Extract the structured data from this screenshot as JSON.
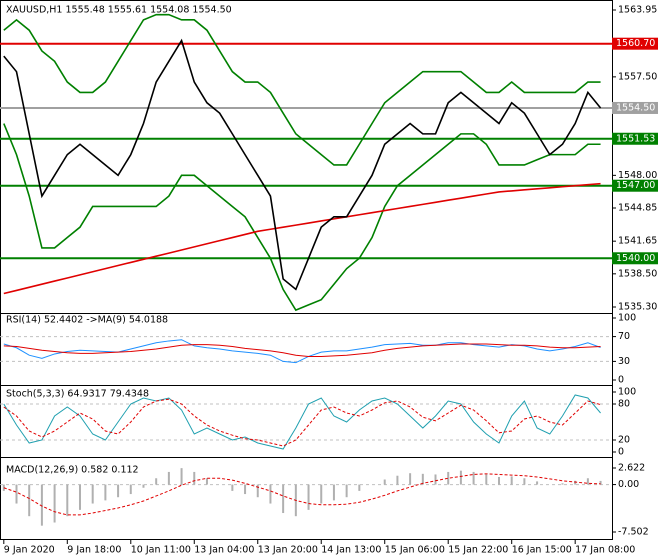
{
  "chart_data": [
    {
      "type": "line",
      "title": "XAUUSD,H1  1555.48 1555.61 1554.08 1554.50",
      "xlim": [
        -0.3,
        47.9
      ],
      "xticks": [
        {
          "value": 0,
          "label": "9 Jan 2020"
        },
        {
          "value": 5,
          "label": "9 Jan 18:00"
        },
        {
          "value": 10,
          "label": "10 Jan 11:00"
        },
        {
          "value": 15,
          "label": "13 Jan 04:00"
        },
        {
          "value": 20,
          "label": "13 Jan 20:00"
        },
        {
          "value": 25,
          "label": "14 Jan 13:00"
        },
        {
          "value": 30,
          "label": "15 Jan 06:00"
        },
        {
          "value": 35,
          "label": "15 Jan 22:00"
        },
        {
          "value": 40,
          "label": "16 Jan 15:00"
        },
        {
          "value": 45,
          "label": "17 Jan 08:00"
        }
      ],
      "ylim": [
        1535.3,
        1563.95
      ],
      "yticks": [
        {
          "value": 1563.95,
          "label": "1563.95"
        },
        {
          "value": 1557.5,
          "label": "1557.50"
        },
        {
          "value": 1548,
          "label": "1548.00"
        },
        {
          "value": 1544.85,
          "label": "1544.85"
        },
        {
          "value": 1541.65,
          "label": "1541.65"
        },
        {
          "value": 1538.5,
          "label": "1538.50"
        },
        {
          "value": 1535.3,
          "label": "1535.30"
        }
      ],
      "levels": [
        {
          "value": 1560.7,
          "label": "1560.70",
          "color": "#e00000"
        },
        {
          "value": 1554.5,
          "label": "1554.50",
          "color": "#a0a0a0"
        },
        {
          "value": 1551.53,
          "label": "1551.53",
          "color": "#008000"
        },
        {
          "value": 1547,
          "label": "1547.00",
          "color": "#008000"
        },
        {
          "value": 1540,
          "label": "1540.00",
          "color": "#008000"
        }
      ],
      "series": [
        {
          "color": "#008000",
          "style": "line",
          "values": [
            1562,
            1563,
            1562,
            1560,
            1559,
            1557,
            1556,
            1556,
            1557,
            1559,
            1561,
            1563,
            1563.5,
            1563.5,
            1563,
            1563,
            1562,
            1560,
            1558,
            1557,
            1557,
            1556,
            1554,
            1552,
            1551,
            1550,
            1549,
            1549,
            1551,
            1553,
            1555,
            1556,
            1557,
            1558,
            1558,
            1558,
            1558,
            1557,
            1556,
            1556,
            1557,
            1556,
            1556,
            1556,
            1556,
            1556,
            1557,
            1557
          ]
        },
        {
          "color": "#008000",
          "style": "line",
          "values": [
            1553,
            1550,
            1546,
            1541,
            1541,
            1542,
            1543,
            1545,
            1545,
            1545,
            1545,
            1545,
            1545,
            1546,
            1548,
            1548,
            1547,
            1546,
            1545,
            1544,
            1542,
            1540,
            1537,
            1535,
            1535.5,
            1536,
            1537.5,
            1539,
            1540,
            1542,
            1545,
            1547,
            1548,
            1549,
            1550,
            1551,
            1552,
            1552,
            1551,
            1549,
            1549,
            1549,
            1549.5,
            1550,
            1550,
            1550,
            1551,
            1551
          ]
        },
        {
          "color": "#e00000",
          "style": "line",
          "values": [
            1536.6,
            1536.9,
            1537.2,
            1537.5,
            1537.8,
            1538.1,
            1538.4,
            1538.7,
            1539,
            1539.3,
            1539.6,
            1539.9,
            1540.2,
            1540.5,
            1540.8,
            1541.1,
            1541.4,
            1541.7,
            1542,
            1542.3,
            1542.6,
            1542.8,
            1543,
            1543.2,
            1543.4,
            1543.6,
            1543.8,
            1544,
            1544.2,
            1544.4,
            1544.6,
            1544.8,
            1545,
            1545.2,
            1545.4,
            1545.6,
            1545.8,
            1546,
            1546.2,
            1546.4,
            1546.5,
            1546.6,
            1546.7,
            1546.8,
            1546.9,
            1547,
            1547.1,
            1547.2
          ]
        },
        {
          "color": "#000000",
          "style": "line",
          "values": [
            1559.5,
            1558,
            1552,
            1546,
            1548,
            1550,
            1551,
            1550,
            1549,
            1548,
            1550,
            1553,
            1557,
            1559,
            1561,
            1557,
            1555,
            1554,
            1552,
            1550,
            1548,
            1546,
            1538,
            1537,
            1540,
            1543,
            1544,
            1544,
            1546,
            1548,
            1551,
            1552,
            1553,
            1552,
            1552,
            1555,
            1556,
            1555,
            1554,
            1553,
            1555,
            1554,
            1552,
            1550,
            1551,
            1553,
            1556,
            1554.5
          ]
        }
      ]
    },
    {
      "type": "line",
      "title": "RSI(14) 52.4402  ->MA(9) 54.0188",
      "ylim": [
        0,
        100
      ],
      "yticks": [
        100,
        70,
        30,
        0
      ],
      "series": [
        {
          "color": "#1e90ff",
          "style": "line",
          "values": [
            58,
            52,
            40,
            35,
            42,
            46,
            48,
            47,
            46,
            45,
            50,
            55,
            60,
            63,
            65,
            55,
            52,
            50,
            47,
            45,
            43,
            40,
            30,
            28,
            38,
            45,
            47,
            47,
            50,
            53,
            57,
            58,
            59,
            56,
            56,
            60,
            60,
            57,
            55,
            53,
            57,
            55,
            50,
            47,
            50,
            54,
            60,
            52.4
          ]
        },
        {
          "color": "#e00000",
          "style": "line",
          "values": [
            55,
            54,
            51,
            48,
            46,
            44,
            43,
            43,
            44,
            45,
            46,
            48,
            50,
            53,
            56,
            57,
            57,
            56,
            54,
            51,
            49,
            47,
            44,
            40,
            38,
            38,
            39,
            40,
            42,
            44,
            48,
            51,
            53,
            55,
            56,
            57,
            58,
            58,
            58,
            57,
            56,
            56,
            55,
            53,
            52,
            52,
            53,
            54
          ]
        }
      ]
    },
    {
      "type": "line",
      "title": "Stoch(5,3,3) 64.9317 79.4348",
      "ylim": [
        0,
        100
      ],
      "yticks": [
        100,
        80,
        20,
        0
      ],
      "series": [
        {
          "color": "#20a0b0",
          "style": "line",
          "values": [
            80,
            45,
            15,
            20,
            60,
            75,
            60,
            30,
            20,
            50,
            80,
            90,
            85,
            90,
            70,
            30,
            40,
            30,
            20,
            25,
            15,
            10,
            5,
            40,
            80,
            90,
            60,
            50,
            70,
            85,
            90,
            80,
            60,
            40,
            60,
            85,
            80,
            50,
            30,
            15,
            60,
            85,
            40,
            30,
            60,
            95,
            90,
            65
          ]
        },
        {
          "color": "#e00000",
          "style": "dash",
          "values": [
            75,
            60,
            35,
            25,
            35,
            50,
            65,
            55,
            35,
            30,
            50,
            75,
            85,
            88,
            80,
            60,
            45,
            35,
            28,
            22,
            20,
            15,
            10,
            20,
            45,
            70,
            75,
            65,
            60,
            70,
            82,
            85,
            75,
            58,
            52,
            65,
            78,
            70,
            52,
            32,
            35,
            55,
            60,
            50,
            45,
            65,
            85,
            79
          ]
        }
      ]
    },
    {
      "type": "bar",
      "title": "MACD(12,26,9) 0.582 0.112",
      "ylim": [
        -7.502,
        2.622
      ],
      "yticks": [
        2.622,
        {
          "value": 0,
          "label": "0.00"
        },
        -7.502
      ],
      "series": [
        {
          "color": "#b0b0b0",
          "style": "bar",
          "values": [
            -1,
            -3,
            -5,
            -6.5,
            -6,
            -5,
            -4,
            -3,
            -2.5,
            -2,
            -1.5,
            -0.5,
            1,
            2,
            2.6,
            2,
            1,
            0,
            -1,
            -1.5,
            -2,
            -3,
            -4.5,
            -5,
            -4,
            -3,
            -2.5,
            -2,
            -1,
            0,
            0.8,
            1.4,
            1.8,
            1.7,
            1.6,
            2,
            2.2,
            2,
            1.6,
            1.2,
            1.3,
            1,
            0.5,
            0,
            0.2,
            0.6,
            1,
            0.58
          ]
        },
        {
          "color": "#e00000",
          "style": "dash",
          "values": [
            -0.5,
            -1.2,
            -2.2,
            -3.4,
            -4.3,
            -4.8,
            -4.8,
            -4.5,
            -4.1,
            -3.7,
            -3.2,
            -2.6,
            -1.8,
            -1,
            -0.1,
            0.6,
            1,
            1,
            0.7,
            0.2,
            -0.4,
            -1,
            -1.8,
            -2.5,
            -3,
            -3.2,
            -3.2,
            -3.1,
            -2.8,
            -2.3,
            -1.7,
            -1,
            -0.4,
            0.2,
            0.6,
            1,
            1.3,
            1.6,
            1.7,
            1.6,
            1.5,
            1.4,
            1.2,
            0.9,
            0.6,
            0.4,
            0.2,
            0.112
          ]
        }
      ]
    }
  ]
}
